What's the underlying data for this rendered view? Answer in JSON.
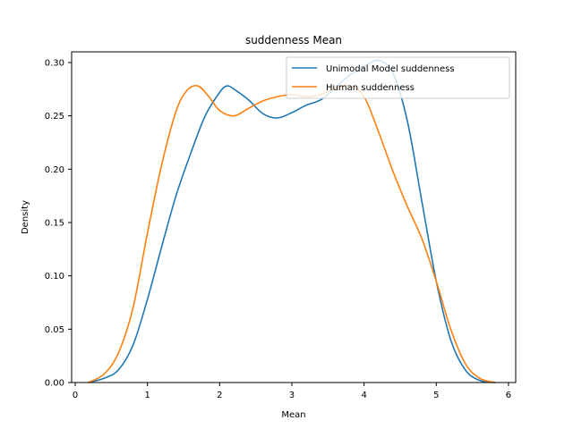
{
  "chart_data": {
    "type": "line",
    "title": "suddenness Mean",
    "xlabel": "Mean",
    "ylabel": "Density",
    "xlim": [
      -0.05,
      6.1
    ],
    "ylim": [
      0,
      0.31
    ],
    "xticks": [
      0,
      1,
      2,
      3,
      4,
      5,
      6
    ],
    "yticks": [
      0.0,
      0.05,
      0.1,
      0.15,
      0.2,
      0.25,
      0.3
    ],
    "ytick_labels": [
      "0.00",
      "0.05",
      "0.10",
      "0.15",
      "0.20",
      "0.25",
      "0.30"
    ],
    "grid": false,
    "legend_position": "top-right",
    "series": [
      {
        "name": "Unimodal Model suddenness",
        "color": "#1f77b4",
        "x": [
          0.18,
          0.4,
          0.6,
          0.8,
          1.0,
          1.2,
          1.4,
          1.6,
          1.8,
          2.0,
          2.1,
          2.2,
          2.4,
          2.6,
          2.8,
          3.0,
          3.2,
          3.4,
          3.6,
          3.8,
          4.0,
          4.2,
          4.4,
          4.6,
          4.8,
          5.0,
          5.2,
          5.4,
          5.6,
          5.82
        ],
        "y": [
          0.0,
          0.004,
          0.012,
          0.035,
          0.078,
          0.128,
          0.176,
          0.215,
          0.25,
          0.272,
          0.278,
          0.275,
          0.265,
          0.252,
          0.248,
          0.253,
          0.26,
          0.265,
          0.276,
          0.288,
          0.296,
          0.302,
          0.29,
          0.245,
          0.17,
          0.095,
          0.04,
          0.012,
          0.002,
          0.0
        ]
      },
      {
        "name": "Human suddenness",
        "color": "#ff7f0e",
        "x": [
          0.18,
          0.4,
          0.6,
          0.8,
          1.0,
          1.2,
          1.4,
          1.55,
          1.7,
          1.85,
          2.0,
          2.2,
          2.4,
          2.6,
          2.8,
          3.0,
          3.2,
          3.4,
          3.6,
          3.8,
          4.0,
          4.2,
          4.4,
          4.6,
          4.8,
          5.0,
          5.2,
          5.4,
          5.6,
          5.82
        ],
        "y": [
          0.0,
          0.008,
          0.028,
          0.07,
          0.14,
          0.205,
          0.255,
          0.274,
          0.278,
          0.268,
          0.255,
          0.25,
          0.257,
          0.264,
          0.268,
          0.27,
          0.268,
          0.27,
          0.276,
          0.278,
          0.268,
          0.235,
          0.198,
          0.165,
          0.135,
          0.095,
          0.05,
          0.018,
          0.004,
          0.0
        ]
      }
    ]
  }
}
